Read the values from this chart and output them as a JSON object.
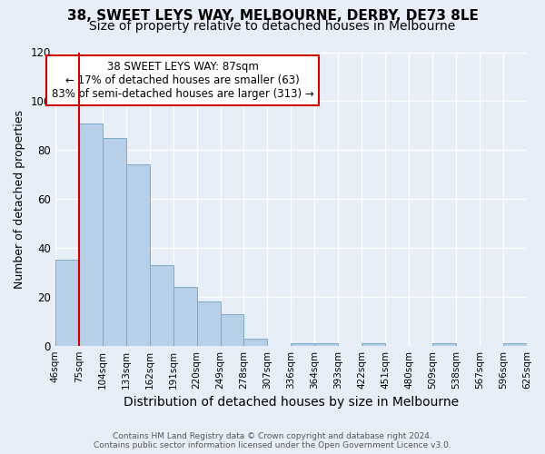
{
  "title": "38, SWEET LEYS WAY, MELBOURNE, DERBY, DE73 8LE",
  "subtitle": "Size of property relative to detached houses in Melbourne",
  "xlabel": "Distribution of detached houses by size in Melbourne",
  "ylabel": "Number of detached properties",
  "bin_labels": [
    "46sqm",
    "75sqm",
    "104sqm",
    "133sqm",
    "162sqm",
    "191sqm",
    "220sqm",
    "249sqm",
    "278sqm",
    "307sqm",
    "336sqm",
    "364sqm",
    "393sqm",
    "422sqm",
    "451sqm",
    "480sqm",
    "509sqm",
    "538sqm",
    "567sqm",
    "596sqm",
    "625sqm"
  ],
  "values": [
    35,
    91,
    85,
    74,
    33,
    24,
    18,
    13,
    3,
    0,
    1,
    1,
    0,
    1,
    0,
    0,
    1,
    0,
    0,
    1
  ],
  "bar_color": "#b8cfe8",
  "bar_edge_color": "#7aaac8",
  "vline_color": "#cc0000",
  "vline_x": 1.0,
  "annotation_title": "38 SWEET LEYS WAY: 87sqm",
  "annotation_line1": "← 17% of detached houses are smaller (63)",
  "annotation_line2": "83% of semi-detached houses are larger (313) →",
  "annotation_box_color": "#ffffff",
  "annotation_box_edge": "#cc0000",
  "ylim": [
    0,
    120
  ],
  "yticks": [
    0,
    20,
    40,
    60,
    80,
    100,
    120
  ],
  "footer_line1": "Contains HM Land Registry data © Crown copyright and database right 2024.",
  "footer_line2": "Contains public sector information licensed under the Open Government Licence v3.0.",
  "title_fontsize": 11,
  "subtitle_fontsize": 10,
  "axis_label_fontsize": 10,
  "tick_fontsize": 7.5,
  "ylabel_fontsize": 9,
  "bg_color": "#e8eef8",
  "plot_bg_color": "#e8eef8",
  "grid_color": "#ffffff",
  "footer_color": "#555555"
}
